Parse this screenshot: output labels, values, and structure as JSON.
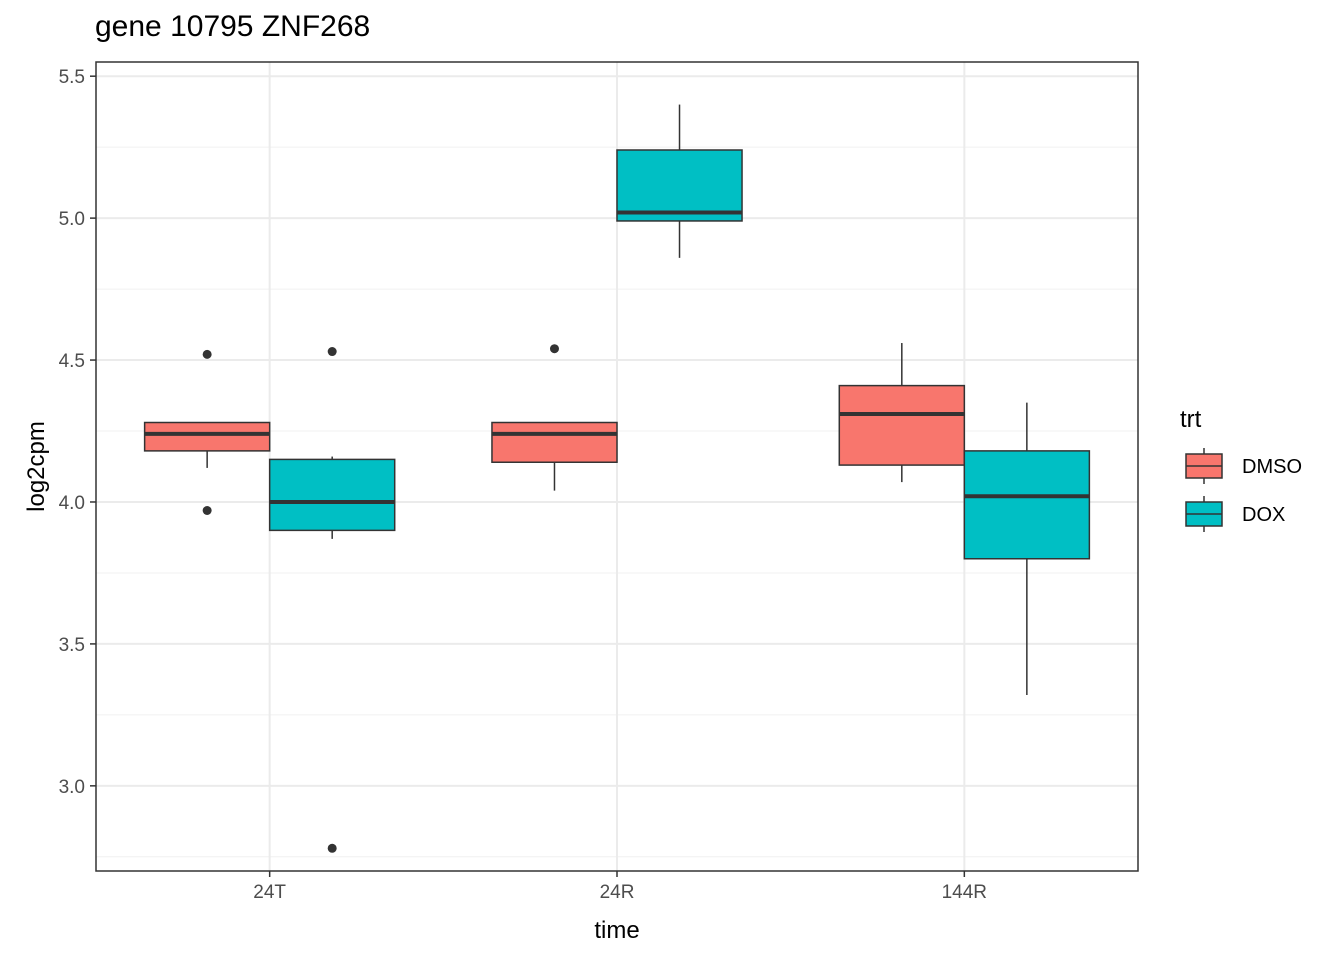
{
  "chart_data": {
    "type": "box",
    "title": "gene 10795 ZNF268",
    "xlabel": "time",
    "ylabel": "log2cpm",
    "ylim": [
      2.7,
      5.55
    ],
    "yticks": [
      3.0,
      3.5,
      4.0,
      4.5,
      5.0,
      5.5
    ],
    "yticklabels": [
      "3.0",
      "3.5",
      "4.0",
      "4.5",
      "5.0",
      "5.5"
    ],
    "categories": [
      "24T",
      "24R",
      "144R"
    ],
    "grid": true,
    "legend": {
      "title": "trt",
      "position": "right"
    },
    "series": [
      {
        "name": "DMSO",
        "color": "#F8766D",
        "boxes": [
          {
            "category": "24T",
            "whisker_low": 4.12,
            "q1": 4.18,
            "median": 4.24,
            "q3": 4.28,
            "whisker_high": 4.28,
            "outliers": [
              4.52,
              3.97
            ]
          },
          {
            "category": "24R",
            "whisker_low": 4.04,
            "q1": 4.14,
            "median": 4.24,
            "q3": 4.28,
            "whisker_high": 4.28,
            "outliers": [
              4.54
            ]
          },
          {
            "category": "144R",
            "whisker_low": 4.07,
            "q1": 4.13,
            "median": 4.31,
            "q3": 4.41,
            "whisker_high": 4.56,
            "outliers": []
          }
        ]
      },
      {
        "name": "DOX",
        "color": "#00BFC4",
        "boxes": [
          {
            "category": "24T",
            "whisker_low": 3.87,
            "q1": 3.9,
            "median": 4.0,
            "q3": 4.15,
            "whisker_high": 4.16,
            "outliers": [
              4.53,
              2.78
            ]
          },
          {
            "category": "24R",
            "whisker_low": 4.86,
            "q1": 4.99,
            "median": 5.02,
            "q3": 5.24,
            "whisker_high": 5.4,
            "outliers": []
          },
          {
            "category": "144R",
            "whisker_low": 3.32,
            "q1": 3.8,
            "median": 4.02,
            "q3": 4.18,
            "whisker_high": 4.35,
            "outliers": []
          }
        ]
      }
    ]
  }
}
